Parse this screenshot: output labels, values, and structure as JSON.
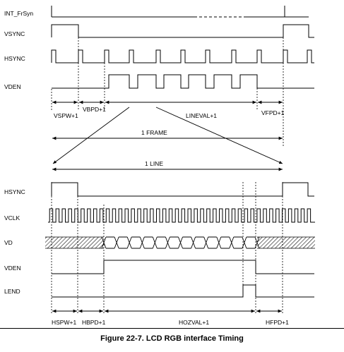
{
  "signals_top": {
    "int_frsyn": "INT_FrSyn",
    "vsync": "VSYNC",
    "hsync": "HSYNC",
    "vden": "VDEN"
  },
  "signals_bottom": {
    "hsync": "HSYNC",
    "vclk": "VCLK",
    "vd": "VD",
    "vden": "VDEN",
    "lend": "LEND"
  },
  "annotations_top": {
    "vspw": "VSPW+1",
    "vbpd": "VBPD+1",
    "lineval": "LINEVAL+1",
    "vfpd": "VFPD+1",
    "frame": "1 FRAME"
  },
  "annotations_bottom": {
    "line": "1 LINE",
    "hspw": "HSPW+1",
    "hbpd": "HBPD+1",
    "hozval": "HOZVAL+1",
    "hfpd": "HFPD+1"
  },
  "caption": "Figure 22-7. LCD RGB interface Timing"
}
